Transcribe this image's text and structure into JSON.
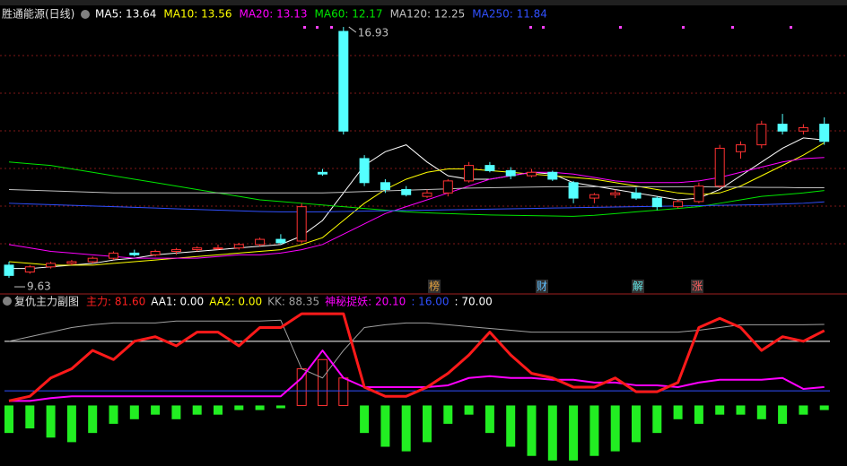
{
  "header": {
    "title": "胜通能源(日线)",
    "ma_labels": [
      {
        "text": "MA5: 13.64",
        "color": "#ffffff"
      },
      {
        "text": "MA10: 13.56",
        "color": "#ffff00"
      },
      {
        "text": "MA20: 13.13",
        "color": "#ff00ff"
      },
      {
        "text": "MA60: 12.17",
        "color": "#00e600"
      },
      {
        "text": "MA120: 12.25",
        "color": "#c0c0c0"
      },
      {
        "text": "MA250: 11.84",
        "color": "#3050ff"
      }
    ]
  },
  "sub_header": {
    "title": "复仇主力副图",
    "labels": [
      {
        "text": "主力: 81.60",
        "color": "#ff2020"
      },
      {
        "text": "AA1: 0.00",
        "color": "#ffffff"
      },
      {
        "text": "AA2: 0.00",
        "color": "#ffff00"
      },
      {
        "text": "KK: 88.35",
        "color": "#a0a0a0"
      },
      {
        "text": "神秘捉妖: 20.10",
        "color": "#ff00ff"
      },
      {
        "text": ": 16.00",
        "color": "#3050ff"
      },
      {
        "text": ": 70.00",
        "color": "#ffffff"
      }
    ]
  },
  "markers": [
    {
      "text": "榜",
      "color": "#e0a040"
    },
    {
      "text": "财",
      "color": "#60c0ff"
    },
    {
      "text": "解",
      "color": "#60e0e0"
    },
    {
      "text": "涨",
      "color": "#ff6060"
    }
  ],
  "chart_data": [
    {
      "type": "candlestick",
      "ylim": [
        9.24,
        17.14
      ],
      "annotations": [
        "16.93",
        "9.63"
      ],
      "open": [
        10.0,
        9.8,
        9.95,
        10.05,
        10.1,
        10.2,
        10.35,
        10.3,
        10.4,
        10.45,
        10.5,
        10.5,
        10.6,
        10.75,
        10.7,
        12.7,
        16.8,
        13.1,
        12.4,
        12.2,
        12.0,
        12.1,
        12.45,
        12.9,
        12.75,
        12.6,
        12.7,
        12.4,
        11.95,
        12.05,
        12.1,
        11.95,
        11.7,
        11.85,
        12.3,
        13.3,
        13.5,
        14.1,
        13.9,
        14.1
      ],
      "high": [
        10.1,
        10.0,
        10.1,
        10.15,
        10.25,
        10.4,
        10.45,
        10.45,
        10.5,
        10.55,
        10.6,
        10.65,
        10.8,
        10.9,
        11.8,
        12.8,
        16.93,
        13.2,
        12.5,
        12.3,
        12.2,
        12.5,
        13.0,
        13.0,
        12.85,
        12.8,
        12.75,
        12.45,
        12.1,
        12.2,
        12.25,
        12.0,
        11.9,
        12.4,
        13.5,
        13.6,
        14.2,
        14.4,
        14.1,
        14.3
      ],
      "low": [
        9.63,
        9.75,
        9.9,
        10.0,
        10.05,
        10.15,
        10.25,
        10.25,
        10.3,
        10.4,
        10.45,
        10.45,
        10.55,
        10.6,
        10.65,
        12.6,
        13.8,
        12.3,
        12.1,
        12.0,
        11.95,
        12.0,
        12.4,
        12.7,
        12.5,
        12.55,
        12.45,
        11.8,
        11.8,
        11.95,
        11.9,
        11.6,
        11.65,
        11.8,
        12.25,
        13.1,
        13.4,
        13.8,
        13.8,
        13.5
      ],
      "close": [
        9.7,
        9.95,
        10.05,
        10.1,
        10.2,
        10.35,
        10.3,
        10.4,
        10.45,
        10.5,
        10.5,
        10.6,
        10.75,
        10.65,
        11.7,
        12.65,
        13.9,
        12.4,
        12.2,
        12.05,
        12.1,
        12.45,
        12.9,
        12.75,
        12.6,
        12.7,
        12.5,
        11.95,
        12.05,
        12.1,
        11.95,
        11.7,
        11.85,
        12.3,
        13.4,
        13.5,
        14.1,
        13.9,
        14.0,
        13.6
      ],
      "up_color": "#ff3232",
      "down_color": "#54ffff",
      "series": [
        {
          "name": "MA5",
          "color": "#ffffff",
          "values": [
            9.9,
            9.9,
            9.95,
            10.0,
            10.05,
            10.15,
            10.2,
            10.3,
            10.35,
            10.4,
            10.45,
            10.5,
            10.55,
            10.6,
            10.85,
            11.3,
            12.1,
            12.9,
            13.3,
            13.5,
            13.0,
            12.6,
            12.5,
            12.5,
            12.6,
            12.7,
            12.65,
            12.4,
            12.3,
            12.2,
            12.1,
            12.0,
            11.9,
            11.95,
            12.2,
            12.6,
            13.0,
            13.4,
            13.7,
            13.64
          ]
        },
        {
          "name": "MA10",
          "color": "#ffff00",
          "values": [
            10.1,
            10.05,
            10.0,
            10.0,
            10.0,
            10.05,
            10.1,
            10.15,
            10.2,
            10.25,
            10.3,
            10.35,
            10.4,
            10.45,
            10.6,
            10.8,
            11.3,
            11.8,
            12.2,
            12.5,
            12.7,
            12.8,
            12.8,
            12.75,
            12.7,
            12.65,
            12.6,
            12.55,
            12.5,
            12.4,
            12.3,
            12.2,
            12.1,
            12.05,
            12.1,
            12.3,
            12.6,
            12.9,
            13.2,
            13.56
          ]
        },
        {
          "name": "MA20",
          "color": "#ff00ff",
          "values": [
            10.6,
            10.5,
            10.4,
            10.35,
            10.3,
            10.25,
            10.2,
            10.2,
            10.2,
            10.2,
            10.25,
            10.3,
            10.3,
            10.35,
            10.45,
            10.6,
            10.9,
            11.2,
            11.5,
            11.7,
            11.9,
            12.1,
            12.3,
            12.5,
            12.6,
            12.7,
            12.7,
            12.65,
            12.55,
            12.45,
            12.4,
            12.4,
            12.4,
            12.45,
            12.55,
            12.7,
            12.85,
            13.0,
            13.1,
            13.13
          ]
        },
        {
          "name": "MA60",
          "color": "#00e600",
          "values": [
            13.0,
            12.95,
            12.9,
            12.8,
            12.7,
            12.6,
            12.5,
            12.4,
            12.3,
            12.2,
            12.1,
            12.0,
            11.9,
            11.85,
            11.8,
            11.75,
            11.7,
            11.65,
            11.6,
            11.55,
            11.52,
            11.5,
            11.48,
            11.46,
            11.45,
            11.44,
            11.43,
            11.42,
            11.45,
            11.5,
            11.55,
            11.6,
            11.65,
            11.7,
            11.8,
            11.9,
            12.0,
            12.05,
            12.1,
            12.17
          ]
        },
        {
          "name": "MA120",
          "color": "#c0c0c0",
          "values": [
            12.2,
            12.18,
            12.16,
            12.14,
            12.12,
            12.1,
            12.1,
            12.1,
            12.1,
            12.1,
            12.1,
            12.1,
            12.1,
            12.1,
            12.1,
            12.1,
            12.12,
            12.14,
            12.16,
            12.18,
            12.2,
            12.22,
            12.24,
            12.25,
            12.26,
            12.27,
            12.28,
            12.28,
            12.28,
            12.28,
            12.28,
            12.28,
            12.28,
            12.28,
            12.27,
            12.27,
            12.26,
            12.26,
            12.25,
            12.25
          ]
        },
        {
          "name": "MA250",
          "color": "#3050ff",
          "values": [
            11.8,
            11.78,
            11.76,
            11.74,
            11.72,
            11.7,
            11.68,
            11.66,
            11.64,
            11.62,
            11.6,
            11.58,
            11.56,
            11.55,
            11.55,
            11.55,
            11.56,
            11.57,
            11.58,
            11.59,
            11.6,
            11.61,
            11.62,
            11.63,
            11.64,
            11.65,
            11.66,
            11.67,
            11.68,
            11.69,
            11.7,
            11.71,
            11.72,
            11.73,
            11.74,
            11.75,
            11.76,
            11.78,
            11.8,
            11.84
          ]
        }
      ]
    },
    {
      "type": "indicator",
      "ylim": [
        -66,
        105
      ],
      "levels": [
        {
          "value": 70,
          "color": "#ffffff"
        },
        {
          "value": 16,
          "color": "#3050ff"
        }
      ],
      "bars": [
        -30,
        -25,
        -35,
        -40,
        -30,
        -20,
        -15,
        -10,
        -15,
        -10,
        -10,
        -5,
        -5,
        -3,
        40,
        50,
        30,
        -30,
        -45,
        -50,
        -40,
        -20,
        -10,
        -30,
        -45,
        -55,
        -60,
        -60,
        -55,
        -50,
        -40,
        -30,
        -15,
        -20,
        -10,
        -10,
        -15,
        -20,
        -10,
        -5
      ],
      "bar_up_color": "#ff3232",
      "bar_down_color": "#22ee22",
      "series": [
        {
          "name": "KK",
          "color": "#a0a0a0",
          "width": 1,
          "values": [
            70,
            75,
            80,
            85,
            88,
            90,
            90,
            90,
            92,
            92,
            92,
            92,
            92,
            93,
            40,
            30,
            60,
            85,
            88,
            90,
            90,
            88,
            86,
            84,
            82,
            80,
            80,
            80,
            80,
            80,
            80,
            80,
            80,
            82,
            85,
            88,
            88,
            88,
            88,
            88.35
          ]
        },
        {
          "name": "神秘捉妖",
          "color": "#ff00ff",
          "width": 2,
          "values": [
            5,
            5,
            8,
            10,
            10,
            10,
            10,
            10,
            10,
            10,
            10,
            10,
            10,
            10,
            30,
            60,
            30,
            20,
            20,
            20,
            20,
            22,
            30,
            32,
            30,
            30,
            28,
            28,
            25,
            25,
            22,
            22,
            20,
            25,
            28,
            28,
            28,
            30,
            18,
            20.1
          ]
        },
        {
          "name": "主力",
          "color": "#ff1a1a",
          "width": 3,
          "values": [
            5,
            10,
            30,
            40,
            60,
            50,
            70,
            75,
            65,
            80,
            80,
            65,
            85,
            85,
            100,
            100,
            100,
            20,
            10,
            10,
            20,
            35,
            55,
            80,
            55,
            35,
            30,
            20,
            20,
            30,
            15,
            15,
            25,
            85,
            95,
            85,
            60,
            75,
            70,
            81.6
          ]
        }
      ]
    }
  ]
}
